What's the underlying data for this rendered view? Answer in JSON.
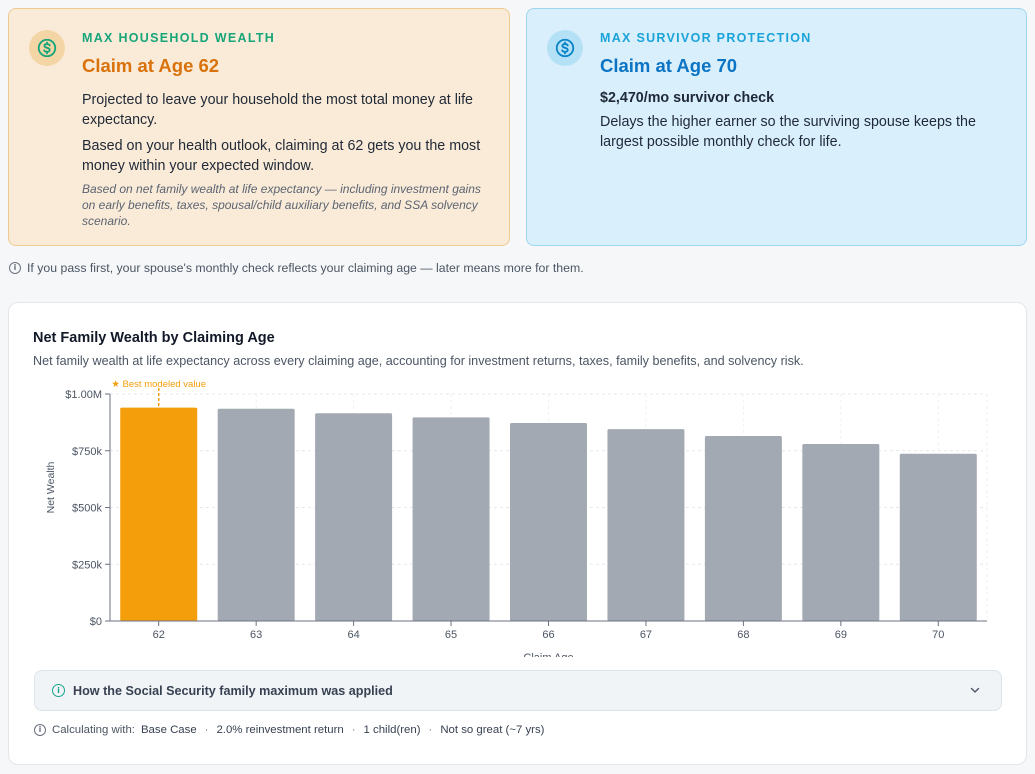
{
  "cards": {
    "wealth": {
      "icon": "dollar-circle-icon",
      "eyebrow": "MAX HOUSEHOLD WEALTH",
      "title": "Claim at Age 62",
      "line1": "Projected to leave your household the most total money at life expectancy.",
      "line2": "Based on your health outlook, claiming at 62 gets you the most money within your expected window.",
      "fine": "Based on net family wealth at life expectancy — including investment gains on early benefits, taxes, spousal/child auxiliary benefits, and SSA solvency scenario."
    },
    "survivor": {
      "icon": "dollar-circle-icon",
      "eyebrow": "MAX SURVIVOR PROTECTION",
      "title": "Claim at Age 70",
      "amount": "$2,470/mo survivor check",
      "line1": "Delays the higher earner so the surviving spouse keeps the largest possible monthly check for life."
    }
  },
  "info_line": "If you pass first, your spouse's monthly check reflects your claiming age — later means more for them.",
  "panel": {
    "title": "Net Family Wealth by Claiming Age",
    "subtitle": "Net family wealth at life expectancy across every claiming age, accounting for investment returns, taxes, family benefits, and solvency risk."
  },
  "chart_data": {
    "type": "bar",
    "categories": [
      "62",
      "63",
      "64",
      "65",
      "66",
      "67",
      "68",
      "69",
      "70"
    ],
    "values": [
      940000,
      935000,
      915000,
      897000,
      872000,
      845000,
      815000,
      780000,
      737000
    ],
    "xlabel": "Claim Age",
    "ylabel": "Net Wealth",
    "ylim": [
      0,
      1000000
    ],
    "yticks": [
      0,
      250000,
      500000,
      750000,
      1000000
    ],
    "ytick_labels": [
      "$0",
      "$250k",
      "$500k",
      "$750k",
      "$1.00M"
    ],
    "highlight_index": 0,
    "highlight_label": "★ Best modeled value",
    "colors": {
      "highlight": "#f59e0b",
      "default": "#a3a9b2",
      "annotation": "#f59e0b"
    }
  },
  "accordion": {
    "label": "How the Social Security family maximum was applied"
  },
  "calc": {
    "prefix": "Calculating with:",
    "scenario": "Base Case",
    "reinvest": "2.0% reinvestment return",
    "children": "1 child(ren)",
    "health": "Not so great (~7 yrs)"
  }
}
